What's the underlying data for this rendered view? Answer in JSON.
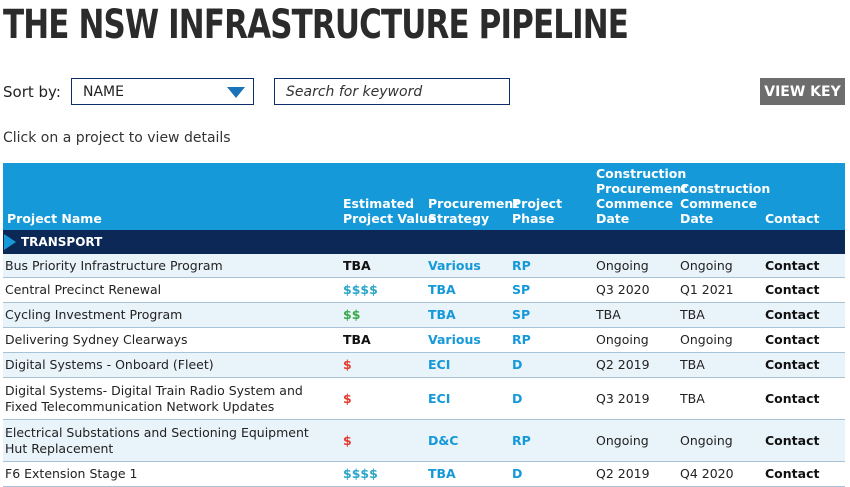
{
  "page": {
    "title": "THE NSW INFRASTRUCTURE PIPELINE",
    "hint": "Click on a project to view details"
  },
  "controls": {
    "sort_label": "Sort by:",
    "sort_value": "NAME",
    "search_placeholder": "Search for keyword",
    "view_key_label": "VIEW KEY"
  },
  "table": {
    "headers": {
      "name": "Project Name",
      "value": "Estimated\nProject Value",
      "procurement": "Procurement\nStrategy",
      "phase": "Project\nPhase",
      "cpd": "Construction\nProcurement\nCommence\nDate",
      "cd": "Construction\nCommence\nDate",
      "contact": "Contact"
    },
    "group": "TRANSPORT",
    "colors": {
      "header_bg": "#1599d8",
      "group_bg": "#0c2856",
      "link_blue": "#1599d8",
      "value_teal": "#2aa6c6",
      "value_green": "#3aa84a",
      "value_red": "#e23b2f"
    },
    "rows": [
      {
        "name": "Bus Priority Infrastructure Program",
        "value": "TBA",
        "value_color": "#111111",
        "procurement": "Various",
        "phase": "RP",
        "cpd": "Ongoing",
        "cd": "Ongoing",
        "contact": "Contact"
      },
      {
        "name": "Central Precinct Renewal",
        "value": "$$$$",
        "value_color": "#2aa6c6",
        "procurement": "TBA",
        "phase": "SP",
        "cpd": "Q3 2020",
        "cd": "Q1 2021",
        "contact": "Contact"
      },
      {
        "name": "Cycling Investment Program",
        "value": "$$",
        "value_color": "#3aa84a",
        "procurement": "TBA",
        "phase": "SP",
        "cpd": "TBA",
        "cd": "TBA",
        "contact": "Contact"
      },
      {
        "name": "Delivering Sydney Clearways",
        "value": "TBA",
        "value_color": "#111111",
        "procurement": "Various",
        "phase": "RP",
        "cpd": "Ongoing",
        "cd": "Ongoing",
        "contact": "Contact"
      },
      {
        "name": "Digital Systems - Onboard (Fleet)",
        "value": "$",
        "value_color": "#e23b2f",
        "procurement": "ECI",
        "phase": "D",
        "cpd": "Q2 2019",
        "cd": "TBA",
        "contact": "Contact"
      },
      {
        "name": "Digital Systems- Digital Train Radio System and Fixed Telecommunication Network Updates",
        "value": "$",
        "value_color": "#e23b2f",
        "procurement": "ECI",
        "phase": "D",
        "cpd": "Q3 2019",
        "cd": "TBA",
        "contact": "Contact"
      },
      {
        "name": "Electrical Substations and Sectioning Equipment Hut Replacement",
        "value": "$",
        "value_color": "#e23b2f",
        "procurement": "D&C",
        "phase": "RP",
        "cpd": "Ongoing",
        "cd": "Ongoing",
        "contact": "Contact"
      },
      {
        "name": "F6 Extension Stage 1",
        "value": "$$$$",
        "value_color": "#2aa6c6",
        "procurement": "TBA",
        "phase": "D",
        "cpd": "Q2 2019",
        "cd": "Q4 2020",
        "contact": "Contact"
      }
    ]
  }
}
